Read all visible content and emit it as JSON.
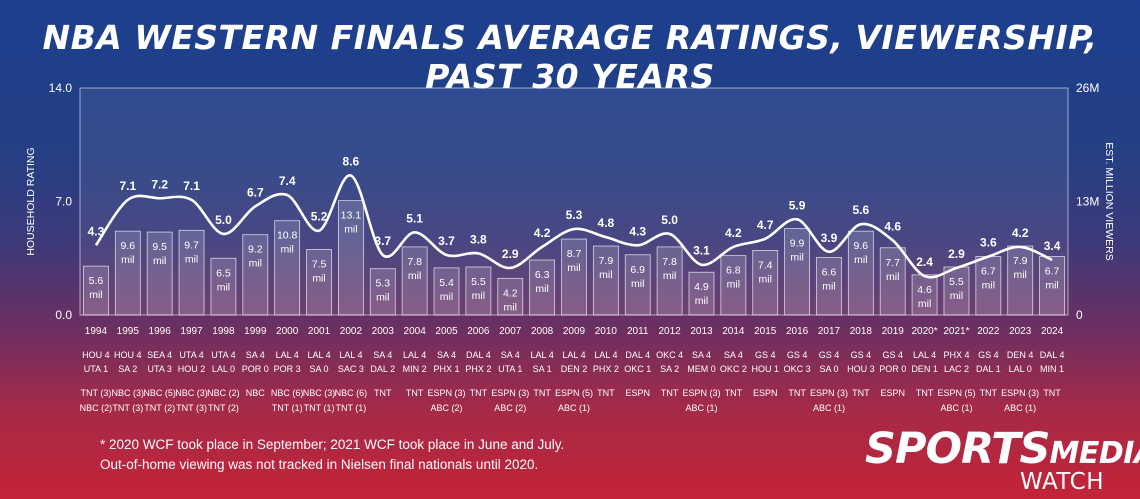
{
  "title": "NBA WESTERN FINALS AVERAGE RATINGS, VIEWERSHIP, PAST 30 YEARS",
  "chart_data": {
    "type": "bar+line",
    "title": "NBA WESTERN FINALS AVERAGE RATINGS, VIEWERSHIP, PAST 30 YEARS",
    "ylabel_left": "HOUSEHOLD RATING",
    "ylabel_right": "EST. MILLION VIEWERS",
    "left_ticks": [
      "0.0",
      "7.0",
      "14.0"
    ],
    "right_ticks": [
      "0",
      "13M",
      "26M"
    ],
    "ylim_left": [
      0,
      14
    ],
    "ylim_right": [
      0,
      26
    ],
    "grid": false,
    "years": [
      "1994",
      "1995",
      "1996",
      "1997",
      "1998",
      "1999",
      "2000",
      "2001",
      "2002",
      "2003",
      "2004",
      "2005",
      "2006",
      "2007",
      "2008",
      "2009",
      "2010",
      "2011",
      "2012",
      "2013",
      "2014",
      "2015",
      "2016",
      "2017",
      "2018",
      "2019",
      "2020*",
      "2021*",
      "2022",
      "2023",
      "2024"
    ],
    "ratings": [
      4.3,
      7.1,
      7.2,
      7.1,
      5.0,
      6.7,
      7.4,
      5.2,
      8.6,
      3.7,
      5.1,
      3.7,
      3.8,
      2.9,
      4.2,
      5.3,
      4.8,
      4.3,
      5.0,
      3.1,
      4.2,
      4.7,
      5.9,
      3.9,
      5.6,
      4.6,
      2.4,
      2.9,
      3.6,
      4.2,
      3.4
    ],
    "rating_labels": [
      "4.3",
      "7.1",
      "7.2",
      "7.1",
      "5.0",
      "6.7",
      "7.4",
      "5.2",
      "8.6",
      "3.7",
      "5.1",
      "3.7",
      "3.8",
      "2.9",
      "4.2",
      "5.3",
      "4.8",
      "4.3",
      "5.0",
      "3.1",
      "4.2",
      "4.7",
      "5.9",
      "3.9",
      "5.6",
      "4.6",
      "2.4",
      "2.9",
      "3.6",
      "4.2",
      "3.4"
    ],
    "viewers_m": [
      5.6,
      9.6,
      9.5,
      9.7,
      6.5,
      9.2,
      10.8,
      7.5,
      13.1,
      5.3,
      7.8,
      5.4,
      5.5,
      4.2,
      6.3,
      8.7,
      7.9,
      6.9,
      7.8,
      4.9,
      6.8,
      7.4,
      9.9,
      6.6,
      9.6,
      7.7,
      4.6,
      5.5,
      6.7,
      7.9,
      6.7
    ],
    "viewer_labels": [
      "5.6",
      "9.6",
      "9.5",
      "9.7",
      "6.5",
      "9.2",
      "10.8",
      "7.5",
      "13.1",
      "5.3",
      "7.8",
      "5.4",
      "5.5",
      "4.2",
      "6.3",
      "8.7",
      "7.9",
      "6.9",
      "7.8",
      "4.9",
      "6.8",
      "7.4",
      "9.9",
      "6.6",
      "9.6",
      "7.7",
      "4.6",
      "5.5",
      "6.7",
      "7.9",
      "6.7"
    ],
    "viewer_unit": "mil",
    "series_results": [
      [
        "HOU 4",
        "UTA 1"
      ],
      [
        "HOU 4",
        "SA 2"
      ],
      [
        "SEA 4",
        "UTA 3"
      ],
      [
        "UTA 4",
        "HOU 2"
      ],
      [
        "UTA 4",
        "LAL 0"
      ],
      [
        "SA 4",
        "POR 0"
      ],
      [
        "LAL 4",
        "POR 3"
      ],
      [
        "LAL 4",
        "SA 0"
      ],
      [
        "LAL 4",
        "SAC 3"
      ],
      [
        "SA 4",
        "DAL 2"
      ],
      [
        "LAL 4",
        "MIN 2"
      ],
      [
        "SA 4",
        "PHX 1"
      ],
      [
        "DAL 4",
        "PHX 2"
      ],
      [
        "SA 4",
        "UTA 1"
      ],
      [
        "LAL 4",
        "SA 1"
      ],
      [
        "LAL 4",
        "DEN 2"
      ],
      [
        "LAL 4",
        "PHX 2"
      ],
      [
        "DAL 4",
        "OKC 1"
      ],
      [
        "OKC 4",
        "SA 2"
      ],
      [
        "SA 4",
        "MEM 0"
      ],
      [
        "SA 4",
        "OKC 2"
      ],
      [
        "GS 4",
        "HOU 1"
      ],
      [
        "GS 4",
        "OKC 3"
      ],
      [
        "GS 4",
        "SA 0"
      ],
      [
        "GS 4",
        "HOU 3"
      ],
      [
        "GS 4",
        "POR 0"
      ],
      [
        "LAL 4",
        "DEN 1"
      ],
      [
        "PHX 4",
        "LAC 2"
      ],
      [
        "GS 4",
        "DAL 1"
      ],
      [
        "DEN 4",
        "LAL 0"
      ],
      [
        "DAL 4",
        "MIN 1"
      ]
    ],
    "networks": [
      [
        "TNT (3)",
        "NBC (2)"
      ],
      [
        "NBC (3)",
        "TNT (3)"
      ],
      [
        "NBC (5)",
        "TNT (2)"
      ],
      [
        "NBC (3)",
        "TNT (3)"
      ],
      [
        "NBC (2)",
        "TNT (2)"
      ],
      [
        "NBC",
        ""
      ],
      [
        "NBC (6)",
        "TNT (1)"
      ],
      [
        "NBC (3)",
        "TNT (1)"
      ],
      [
        "NBC (6)",
        "TNT (1)"
      ],
      [
        "TNT",
        ""
      ],
      [
        "TNT",
        ""
      ],
      [
        "ESPN (3)",
        "ABC (2)"
      ],
      [
        "TNT",
        ""
      ],
      [
        "ESPN (3)",
        "ABC (2)"
      ],
      [
        "TNT",
        ""
      ],
      [
        "ESPN (5)",
        "ABC (1)"
      ],
      [
        "TNT",
        ""
      ],
      [
        "ESPN",
        ""
      ],
      [
        "TNT",
        ""
      ],
      [
        "ESPN (3)",
        "ABC (1)"
      ],
      [
        "TNT",
        ""
      ],
      [
        "ESPN",
        ""
      ],
      [
        "TNT",
        ""
      ],
      [
        "ESPN (3)",
        "ABC (1)"
      ],
      [
        "TNT",
        ""
      ],
      [
        "ESPN",
        ""
      ],
      [
        "TNT",
        ""
      ],
      [
        "ESPN (5)",
        "ABC (1)"
      ],
      [
        "TNT",
        ""
      ],
      [
        "ESPN (3)",
        "ABC (1)"
      ],
      [
        "TNT",
        ""
      ]
    ]
  },
  "footnotes": [
    "* 2020 WCF took place in September; 2021 WCF took place in June and July.",
    "Out-of-home viewing was not tracked in Nielsen final nationals until 2020."
  ],
  "logo": {
    "word1": "SPORTS",
    "word2": "MEDIA",
    "word3": "WATCH"
  },
  "colors": {
    "background_top": "#1b3f8e",
    "background_bottom": "#c42338",
    "bar_fill": "rgba(255,255,255,0.16)",
    "bar_stroke": "rgba(255,255,255,0.75)",
    "line": "#ffffff",
    "text": "#ffffff"
  }
}
